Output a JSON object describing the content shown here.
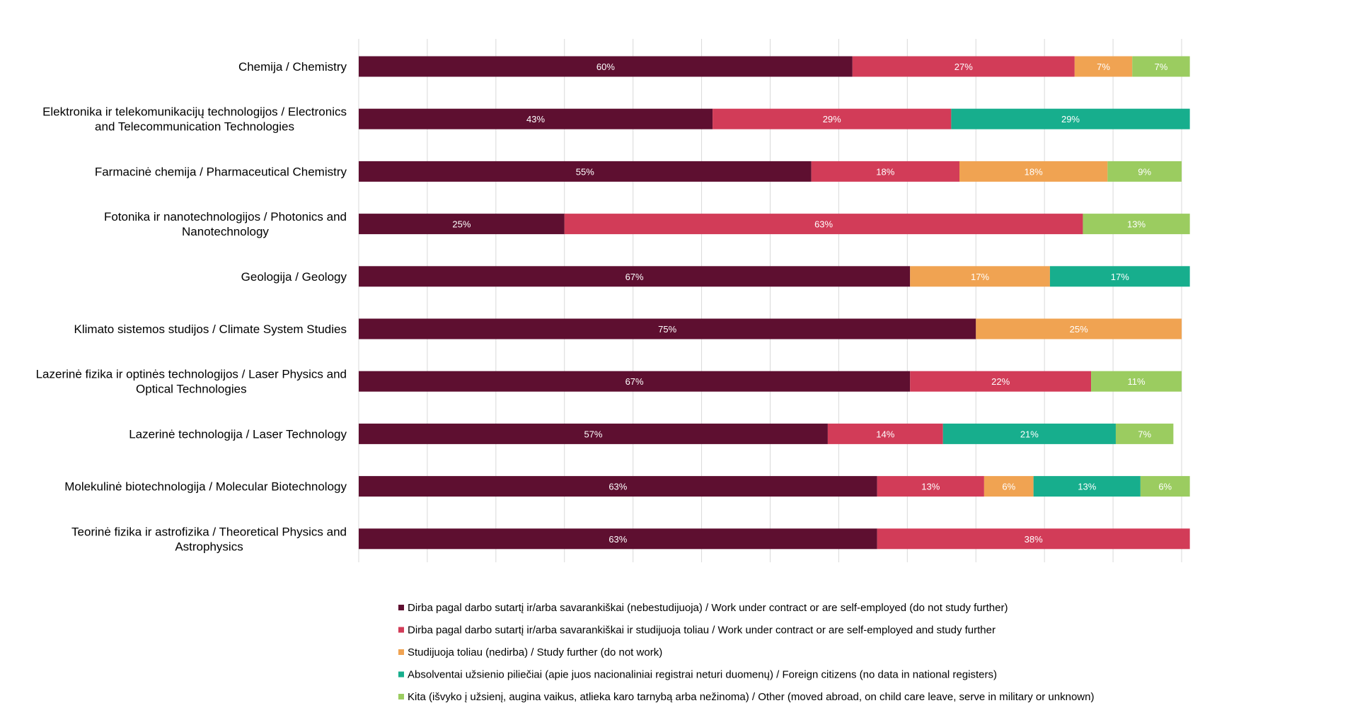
{
  "chart_data": {
    "type": "bar",
    "orientation": "horizontal",
    "stacked": true,
    "percent": true,
    "title": "",
    "xlabel": "",
    "ylabel": "",
    "xlim": [
      0,
      100
    ],
    "grid": true,
    "legend_position": "bottom",
    "categories": [
      "Chemija / Chemistry",
      "Elektronika ir telekomunikacijų technologijos / Electronics and Telecommunication Technologies",
      "Farmacinė chemija / Pharmaceutical Chemistry",
      "Fotonika ir nanotechnologijos / Photonics and Nanotechnology",
      "Geologija / Geology",
      "Klimato sistemos studijos / Climate System Studies",
      "Lazerinė fizika ir optinės technologijos / Laser Physics and Optical Technologies",
      "Lazerinė technologija / Laser Technology",
      "Molekulinė biotechnologija / Molecular Biotechnology",
      "Teorinė fizika ir astrofizika / Theoretical Physics and Astrophysics"
    ],
    "category_lines": [
      [
        "Chemija / Chemistry"
      ],
      [
        "Elektronika ir telekomunikacijų technologijos / Electronics",
        "and Telecommunication Technologies"
      ],
      [
        "Farmacinė chemija / Pharmaceutical Chemistry"
      ],
      [
        "Fotonika ir nanotechnologijos / Photonics and",
        "Nanotechnology"
      ],
      [
        "Geologija / Geology"
      ],
      [
        "Klimato sistemos studijos / Climate System Studies"
      ],
      [
        "Lazerinė fizika ir optinės technologijos / Laser Physics and",
        "Optical Technologies"
      ],
      [
        "Lazerinė technologija / Laser Technology"
      ],
      [
        "Molekulinė biotechnologija / Molecular Biotechnology"
      ],
      [
        "Teorinė fizika ir astrofizika / Theoretical Physics and",
        "Astrophysics"
      ]
    ],
    "series": [
      {
        "name": "Dirba pagal darbo sutartį ir/arba savarankiškai (nebestudijuoja) / Work under contract or are self-employed (do not study further)",
        "color": "#5e0f30",
        "values": [
          60,
          43,
          55,
          25,
          67,
          75,
          67,
          57,
          63,
          63
        ],
        "labels": [
          "60%",
          "43%",
          "55%",
          "25%",
          "67%",
          "75%",
          "67%",
          "57%",
          "63%",
          "63%"
        ]
      },
      {
        "name": "Dirba pagal darbo sutartį ir/arba savarankiškai  ir studijuoja toliau / Work under contract or are self-employed and study further",
        "color": "#d23c58",
        "values": [
          27,
          29,
          18,
          63,
          0,
          0,
          22,
          14,
          13,
          38
        ],
        "labels": [
          "27%",
          "29%",
          "18%",
          "63%",
          "",
          "",
          "22%",
          "14%",
          "13%",
          "38%"
        ]
      },
      {
        "name": "Studijuoja toliau (nedirba) / Study further (do not work)",
        "color": "#f0a352",
        "values": [
          7,
          0,
          18,
          0,
          17,
          25,
          0,
          0,
          6,
          0
        ],
        "labels": [
          "7%",
          "",
          "18%",
          "",
          "17%",
          "25%",
          "",
          "",
          "6%",
          ""
        ]
      },
      {
        "name": "Absolventai užsienio piliečiai (apie juos nacionaliniai registrai neturi duomenų) / Foreign citizens (no data in national registers)",
        "color": "#17ae8d",
        "values": [
          0,
          29,
          0,
          0,
          17,
          0,
          0,
          21,
          13,
          0
        ],
        "labels": [
          "",
          "29%",
          "",
          "",
          "17%",
          "",
          "",
          "21%",
          "13%",
          ""
        ]
      },
      {
        "name": "Kita (išvyko į užsienį, augina vaikus, atlieka karo tarnybą arba nežinoma) / Other (moved abroad, on child care leave, serve in military or unknown)",
        "color": "#9bcc60",
        "values": [
          7,
          0,
          9,
          13,
          0,
          0,
          11,
          7,
          6,
          0
        ],
        "labels": [
          "7%",
          "",
          "9%",
          "13%",
          "",
          "",
          "11%",
          "7%",
          "6%",
          ""
        ]
      }
    ]
  }
}
